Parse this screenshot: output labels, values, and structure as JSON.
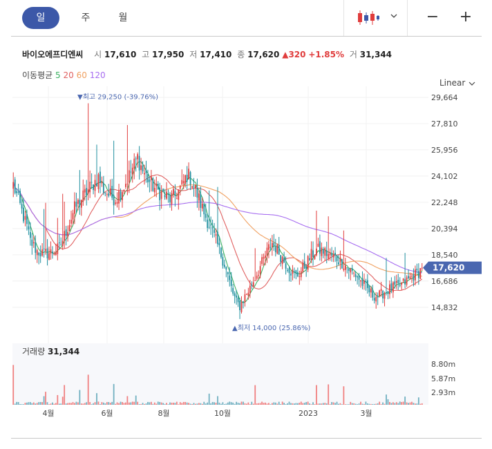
{
  "periods": {
    "day": "일",
    "week": "주",
    "month": "월"
  },
  "quote": {
    "name": "바이오에프디엔씨",
    "open_label": "시",
    "open": "17,610",
    "high_label": "고",
    "high": "17,950",
    "low_label": "저",
    "low": "17,410",
    "close_label": "종",
    "close": "17,620",
    "change": "▲320",
    "change_pct": "+1.85%",
    "volume_label": "거",
    "volume": "31,344"
  },
  "ma": {
    "label": "이동평균",
    "p5": "5",
    "p20": "20",
    "p60": "60",
    "p120": "120"
  },
  "scale": {
    "label": "Linear"
  },
  "colors": {
    "up": "#e03c3c",
    "down": "#1f8f9f",
    "ma5": "#3bb060",
    "ma20": "#e06060",
    "ma60": "#f0a060",
    "ma120": "#a66cf0",
    "accent": "#3c58a8",
    "price_tag": "#4a67b0"
  },
  "chart_data": {
    "type": "candlestick",
    "y_ticks": [
      14832,
      16686,
      18540,
      20394,
      22248,
      24102,
      25956,
      27810,
      29664
    ],
    "y_tick_labels": [
      "14,832",
      "16,686",
      "18,540",
      "20,394",
      "22,248",
      "24,102",
      "25,956",
      "27,810",
      "29,664"
    ],
    "x_labels": [
      "4월",
      "6월",
      "8월",
      "10월",
      "2023",
      "3월"
    ],
    "current_price_label": "17,620",
    "annotations": {
      "max_label": "▼최고 29,250 (-39.76%)",
      "min_label": "▲최저 14,000 (25.86%)"
    },
    "close_path": [
      [
        0,
        23500
      ],
      [
        4,
        22000
      ],
      [
        8,
        20500
      ],
      [
        10,
        19500
      ],
      [
        14,
        18800
      ],
      [
        18,
        18600
      ],
      [
        22,
        18700
      ],
      [
        27,
        19000
      ],
      [
        32,
        20500
      ],
      [
        36,
        21800
      ],
      [
        40,
        22500
      ],
      [
        45,
        23300
      ],
      [
        50,
        24000
      ],
      [
        53,
        23200
      ],
      [
        56,
        22800
      ],
      [
        60,
        22500
      ],
      [
        65,
        23400
      ],
      [
        69,
        24400
      ],
      [
        73,
        25400
      ],
      [
        76,
        24500
      ],
      [
        80,
        23700
      ],
      [
        84,
        23100
      ],
      [
        88,
        22800
      ],
      [
        92,
        22500
      ],
      [
        95,
        22700
      ],
      [
        99,
        23400
      ],
      [
        102,
        24200
      ],
      [
        104,
        24000
      ],
      [
        108,
        22800
      ],
      [
        112,
        21500
      ],
      [
        116,
        20400
      ],
      [
        120,
        19200
      ],
      [
        124,
        17900
      ],
      [
        127,
        16600
      ],
      [
        129,
        15800
      ],
      [
        131,
        15200
      ],
      [
        133,
        14900
      ],
      [
        135,
        15400
      ],
      [
        139,
        16200
      ],
      [
        143,
        17200
      ],
      [
        147,
        18200
      ],
      [
        150,
        19000
      ],
      [
        152,
        19400
      ],
      [
        155,
        18900
      ],
      [
        159,
        18100
      ],
      [
        163,
        17400
      ],
      [
        166,
        17000
      ],
      [
        169,
        17400
      ],
      [
        172,
        17900
      ],
      [
        175,
        18500
      ],
      [
        178,
        18900
      ],
      [
        182,
        18800
      ],
      [
        186,
        18500
      ],
      [
        190,
        18300
      ],
      [
        194,
        17900
      ],
      [
        198,
        17400
      ],
      [
        202,
        17000
      ],
      [
        205,
        16500
      ],
      [
        208,
        16100
      ],
      [
        211,
        15700
      ],
      [
        214,
        15600
      ],
      [
        218,
        15900
      ],
      [
        222,
        16200
      ],
      [
        226,
        16300
      ],
      [
        230,
        16600
      ],
      [
        234,
        17000
      ],
      [
        238,
        17300
      ],
      [
        240,
        17620
      ]
    ],
    "volume_ticks": [
      "8.80m",
      "5.87m",
      "2.93m"
    ],
    "volume_label": "거래량",
    "volume_value": "31,344",
    "ma_legend": [
      "5",
      "20",
      "60",
      "120"
    ],
    "ma_windows": [
      5,
      20,
      60,
      120
    ]
  }
}
